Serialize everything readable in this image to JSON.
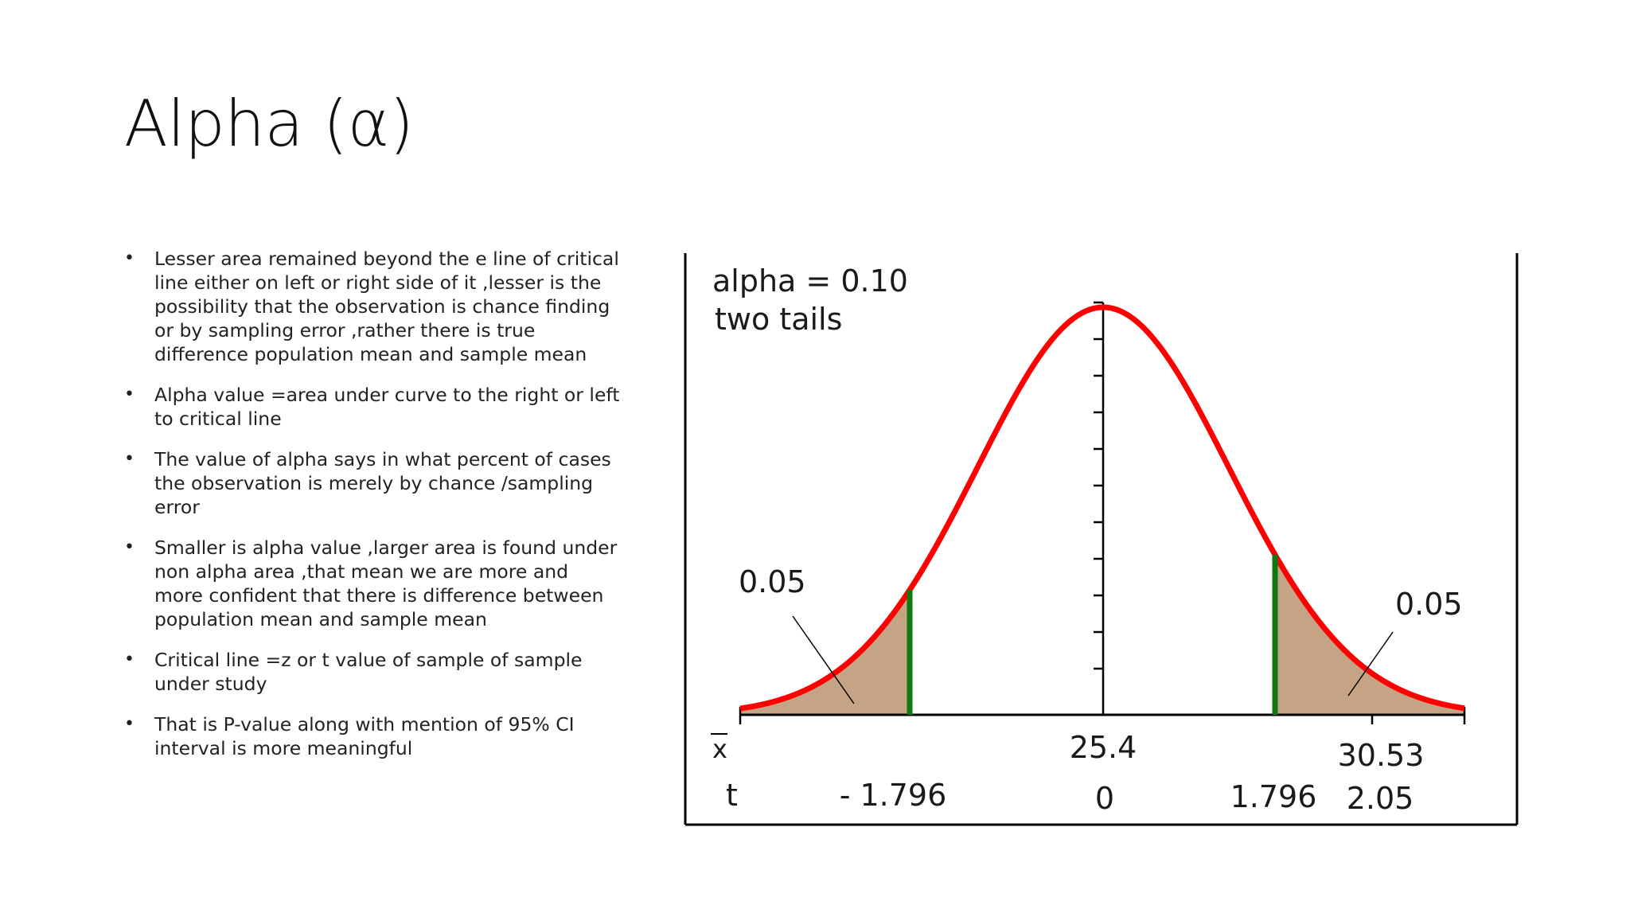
{
  "slide": {
    "title": "Alpha (α)",
    "bullets": [
      {
        "text": "Lesser area remained beyond the e line of critical line either on left or right side of it ,lesser is the possibility that the observation is chance finding or by sampling error ,rather there is true difference population mean and sample mean"
      },
      {
        "text": "Alpha value =area under curve to the right or left to critical line"
      },
      {
        "text": "The value of alpha says in what percent of cases the observation is merely by chance /sampling error"
      },
      {
        "text": "Smaller is alpha value ,larger area is found under non alpha area ,that mean we are more and more confident that there is difference between population mean and sample mean"
      },
      {
        "text": "Critical line =z or t value of sample of sample under study"
      },
      {
        "text": "That is P-value along with mention of 95% CI interval is more meaningful"
      }
    ]
  },
  "diagram": {
    "header_line1": "alpha = 0.10",
    "header_line2": "two tails",
    "left_tail_label": "0.05",
    "right_tail_label": "0.05",
    "xbar_symbol": "x",
    "xbar_center": "25.4",
    "xbar_right": "30.53",
    "t_symbol": "t",
    "t_left": "- 1.796",
    "t_center": "0",
    "t_right_critical": "1.796",
    "t_right": "2.05",
    "alpha": 0.1,
    "tail_area": 0.05,
    "critical_t": 1.796,
    "observed_t": 2.05,
    "colors": {
      "curve": "#ff0000",
      "critical_line": "#117711",
      "tail_fill": "#c4a484",
      "axis": "#000000"
    }
  }
}
